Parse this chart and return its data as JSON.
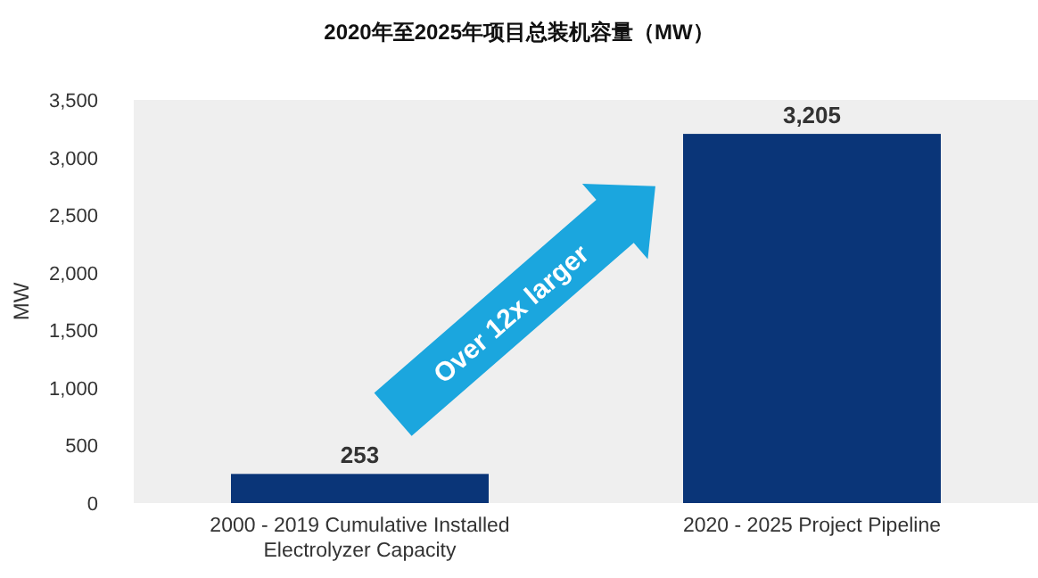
{
  "chart_data": {
    "type": "bar",
    "title": "2020年至2025年项目总装机容量（MW）",
    "ylabel": "MW",
    "categories": [
      "2000 - 2019 Cumulative Installed Electrolyzer Capacity",
      "2020 - 2025 Project Pipeline"
    ],
    "values": [
      253,
      3205
    ],
    "value_labels": [
      "253",
      "3,205"
    ],
    "color": "#0a3578",
    "grid": false,
    "ylim": [
      0,
      3500
    ],
    "yticks": [
      {
        "value": 0,
        "label": "0"
      },
      {
        "value": 500,
        "label": "500"
      },
      {
        "value": 1000,
        "label": "1,000"
      },
      {
        "value": 1500,
        "label": "1,500"
      },
      {
        "value": 2000,
        "label": "2,000"
      },
      {
        "value": 2500,
        "label": "2,500"
      },
      {
        "value": 3000,
        "label": "3,000"
      },
      {
        "value": 3500,
        "label": "3,500"
      }
    ],
    "annotations": [
      "Over 12x larger"
    ]
  }
}
